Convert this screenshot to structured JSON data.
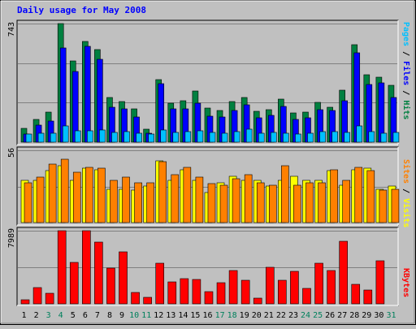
{
  "chart_data": [
    {
      "type": "bar",
      "title": "Daily usage for May 2008",
      "panel": "top",
      "y_top_label": "743",
      "ylim": [
        0,
        743
      ],
      "side_labels": [
        "Pages",
        "Files",
        "Hits"
      ],
      "categories": [
        "1",
        "2",
        "3",
        "4",
        "5",
        "6",
        "7",
        "8",
        "9",
        "10",
        "11",
        "12",
        "13",
        "14",
        "15",
        "16",
        "17",
        "18",
        "19",
        "20",
        "21",
        "22",
        "23",
        "24",
        "25",
        "26",
        "27",
        "28",
        "29",
        "30",
        "31"
      ],
      "series": [
        {
          "name": "Hits",
          "color": "#008040",
          "values": [
            86,
            145,
            186,
            743,
            511,
            630,
            580,
            278,
            254,
            211,
            82,
            390,
            243,
            257,
            322,
            213,
            198,
            253,
            282,
            195,
            202,
            270,
            182,
            190,
            248,
            221,
            327,
            609,
            421,
            407,
            357
          ]
        },
        {
          "name": "Files",
          "color": "#0000ff",
          "values": [
            52,
            106,
            134,
            589,
            444,
            599,
            521,
            221,
            211,
            160,
            56,
            365,
            210,
            211,
            244,
            165,
            157,
            200,
            232,
            152,
            168,
            224,
            144,
            153,
            206,
            196,
            259,
            561,
            359,
            371,
            281
          ]
        },
        {
          "name": "Pages",
          "color": "#00c0ff",
          "values": [
            50,
            57,
            58,
            103,
            73,
            73,
            75,
            60,
            68,
            58,
            50,
            75,
            63,
            68,
            70,
            60,
            58,
            65,
            80,
            55,
            60,
            58,
            52,
            54,
            64,
            65,
            62,
            100,
            68,
            58,
            60
          ]
        }
      ]
    },
    {
      "type": "bar",
      "panel": "middle",
      "y_top_label": "56",
      "ylim": [
        0,
        56
      ],
      "side_labels": [
        "Sites",
        "Visits"
      ],
      "categories": [
        "1",
        "2",
        "3",
        "4",
        "5",
        "6",
        "7",
        "8",
        "9",
        "10",
        "11",
        "12",
        "13",
        "14",
        "15",
        "16",
        "17",
        "18",
        "19",
        "20",
        "21",
        "22",
        "23",
        "24",
        "25",
        "26",
        "27",
        "28",
        "29",
        "30",
        "31"
      ],
      "series": [
        {
          "name": "Visits",
          "color": "#ffff00",
          "values": [
            33,
            33,
            40,
            44,
            33,
            42,
            41,
            26,
            26,
            25,
            28,
            48,
            33,
            41,
            33,
            23,
            31,
            36,
            33,
            33,
            28,
            33,
            36,
            33,
            33,
            40,
            29,
            41,
            42,
            26,
            28
          ]
        },
        {
          "name": "Sites",
          "color": "#ff8000",
          "values": [
            31,
            35,
            45,
            49,
            39,
            43,
            42,
            33,
            35,
            31,
            31,
            47,
            37,
            43,
            35,
            30,
            29,
            34,
            37,
            31,
            29,
            44,
            29,
            31,
            31,
            41,
            33,
            43,
            40,
            25,
            26
          ]
        }
      ]
    },
    {
      "type": "bar",
      "panel": "bottom",
      "y_top_label": "7989",
      "ylim": [
        0,
        7989
      ],
      "side_labels": [
        "KBytes"
      ],
      "categories": [
        "1",
        "2",
        "3",
        "4",
        "5",
        "6",
        "7",
        "8",
        "9",
        "10",
        "11",
        "12",
        "13",
        "14",
        "15",
        "16",
        "17",
        "18",
        "19",
        "20",
        "21",
        "22",
        "23",
        "24",
        "25",
        "26",
        "27",
        "28",
        "29",
        "30",
        "31"
      ],
      "series": [
        {
          "name": "KBytes",
          "color": "#ff0000",
          "values": [
            480,
            1750,
            1190,
            7989,
            4550,
            7989,
            6720,
            3950,
            5710,
            1230,
            710,
            4430,
            2370,
            2780,
            2700,
            1370,
            2330,
            3610,
            2610,
            630,
            4030,
            2600,
            3560,
            1690,
            4450,
            3660,
            6870,
            2090,
            1550,
            4670,
            0
          ]
        }
      ]
    }
  ],
  "colors": {
    "background": "#c0c0c0",
    "title": "#0000ff",
    "day_default": "#000000",
    "day_weekend": "#00805c",
    "label_pages": "#00c0ff",
    "label_files": "#0000ff",
    "label_hits": "#008040",
    "label_sites": "#ff8000",
    "label_visits": "#ffff00",
    "label_kbytes": "#ff0000"
  },
  "weekend_days": [
    "3",
    "4",
    "10",
    "11",
    "17",
    "18",
    "24",
    "25",
    "31"
  ]
}
